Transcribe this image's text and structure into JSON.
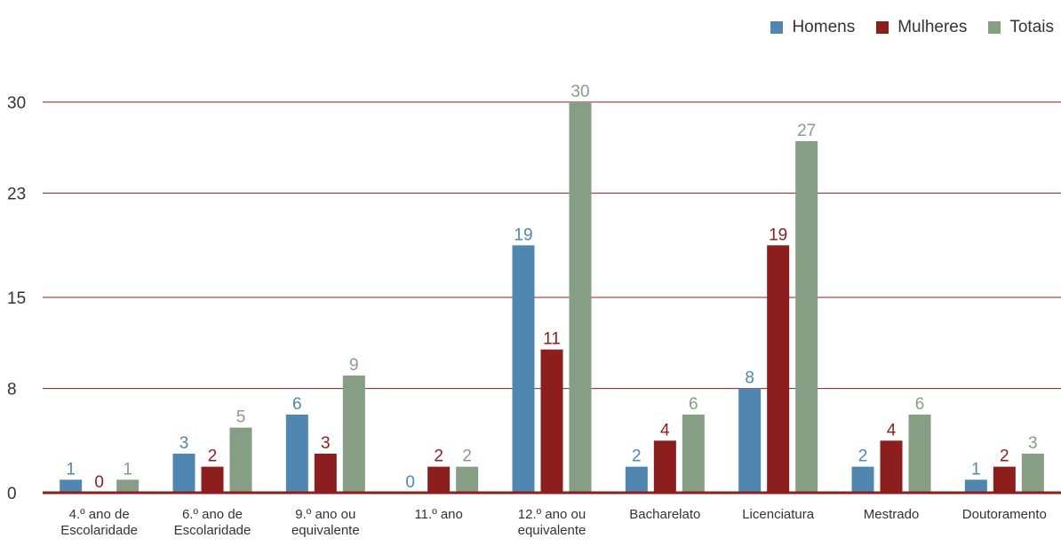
{
  "chart_data": {
    "type": "bar",
    "categories": [
      [
        "4.º ano de",
        "Escolaridade"
      ],
      [
        "6.º ano de",
        "Escolaridade"
      ],
      [
        "9.º ano ou",
        "equivalente"
      ],
      [
        "11.º ano"
      ],
      [
        "12.º ano ou",
        "equivalente"
      ],
      [
        "Bacharelato"
      ],
      [
        "Licenciatura"
      ],
      [
        "Mestrado"
      ],
      [
        "Doutoramento"
      ]
    ],
    "series": [
      {
        "name": "Homens",
        "color": "#4f87b0",
        "values": [
          1,
          3,
          6,
          0,
          19,
          2,
          8,
          2,
          1
        ]
      },
      {
        "name": "Mulheres",
        "color": "#8c1e1e",
        "values": [
          0,
          2,
          3,
          2,
          11,
          4,
          19,
          4,
          2
        ]
      },
      {
        "name": "Totais",
        "color": "#869e84",
        "values": [
          1,
          5,
          9,
          2,
          30,
          6,
          27,
          6,
          3
        ]
      }
    ],
    "yticks": [
      0,
      8,
      15,
      23,
      30
    ],
    "ylim": [
      0,
      30
    ],
    "grid": true,
    "grid_color": "#8c1e1e",
    "legend_position": "top-right"
  }
}
